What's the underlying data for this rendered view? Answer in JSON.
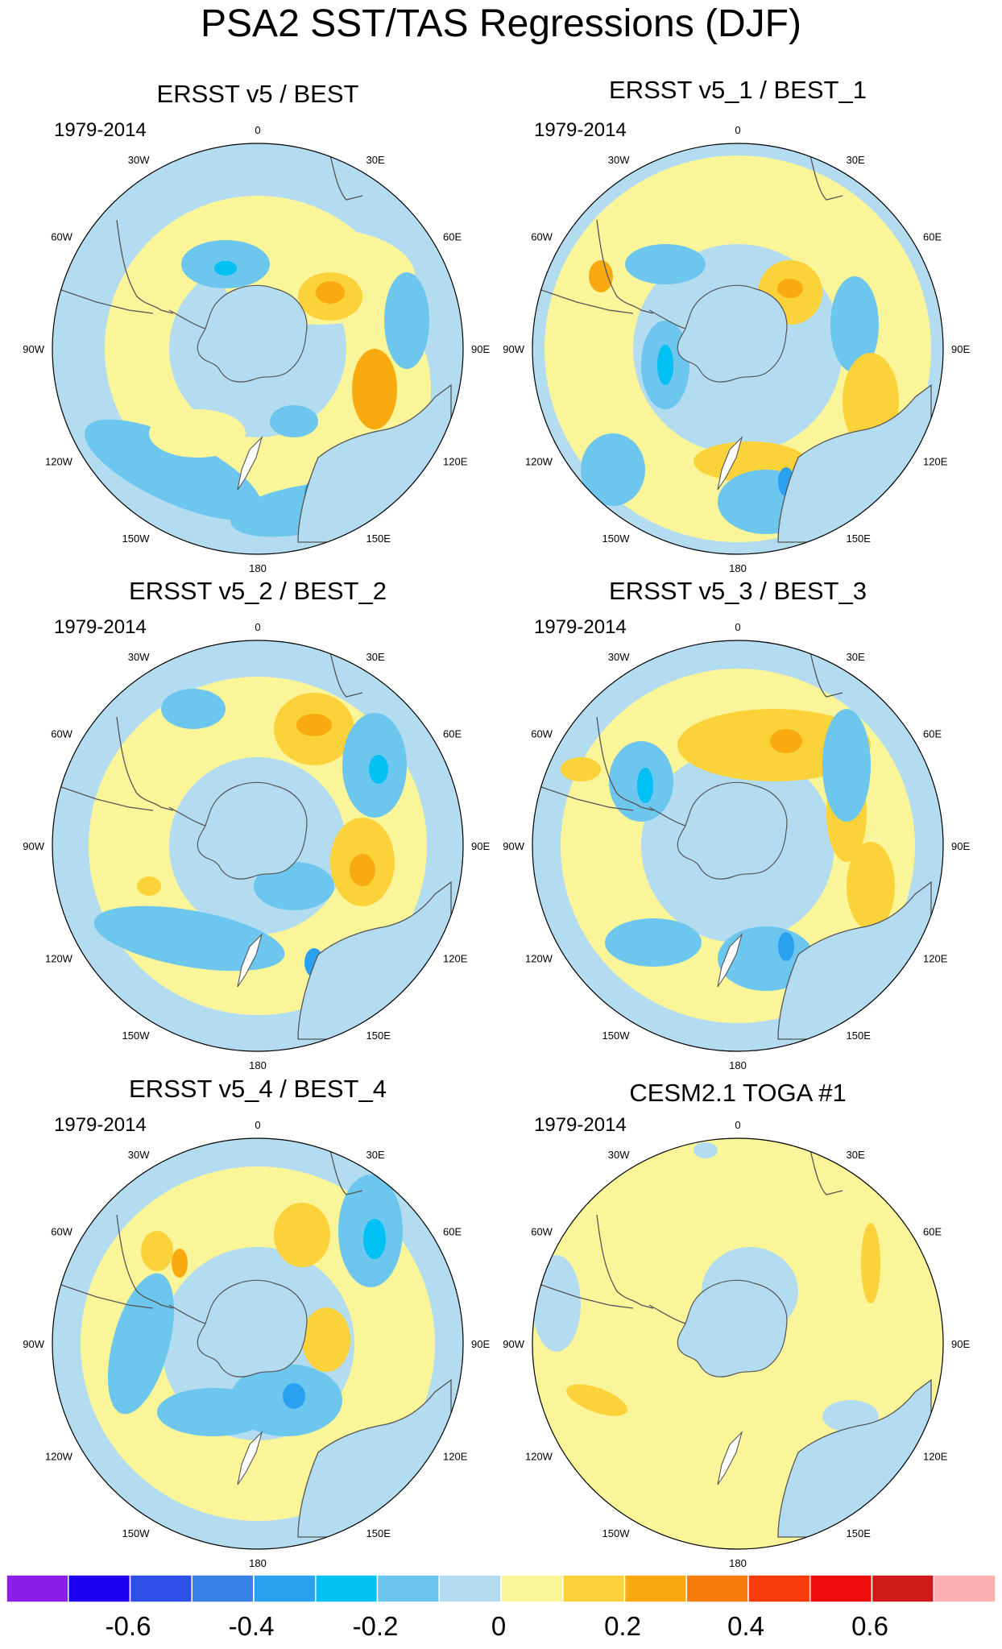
{
  "title": "PSA2 SST/TAS Regressions (DJF)",
  "period_label": "1979-2014",
  "longitude_labels": [
    "0",
    "30E",
    "60E",
    "90E",
    "120E",
    "150E",
    "180",
    "150W",
    "120W",
    "90W",
    "60W",
    "30W"
  ],
  "colors": {
    "anomaly_palette": [
      "#8a1fe8",
      "#1e00f5",
      "#2f50e8",
      "#3a82ea",
      "#2aa0f0",
      "#00c0f4",
      "#6cc6ee",
      "#b4dcf0",
      "#fbf59a",
      "#fbd23a",
      "#f8aa10",
      "#f77c0c",
      "#f93d0a",
      "#ef0c0c",
      "#cf1a1a",
      "#fbb0b0"
    ],
    "land": "#b4dcf0",
    "coast": "#555555"
  },
  "panels": [
    {
      "title": "ERSST v5 / BEST",
      "period": "1979-2014"
    },
    {
      "title": "ERSST v5_1 / BEST_1",
      "period": "1979-2014"
    },
    {
      "title": "ERSST v5_2 / BEST_2",
      "period": "1979-2014"
    },
    {
      "title": "ERSST v5_3 / BEST_3",
      "period": "1979-2014"
    },
    {
      "title": "ERSST v5_4 / BEST_4",
      "period": "1979-2014"
    },
    {
      "title": "CESM2.1 TOGA #1",
      "period": "1979-2014"
    }
  ],
  "colorbar": {
    "tick_labels": [
      "-0.6",
      "-0.4",
      "-0.2",
      "0",
      "0.2",
      "0.4",
      "0.6"
    ]
  }
}
